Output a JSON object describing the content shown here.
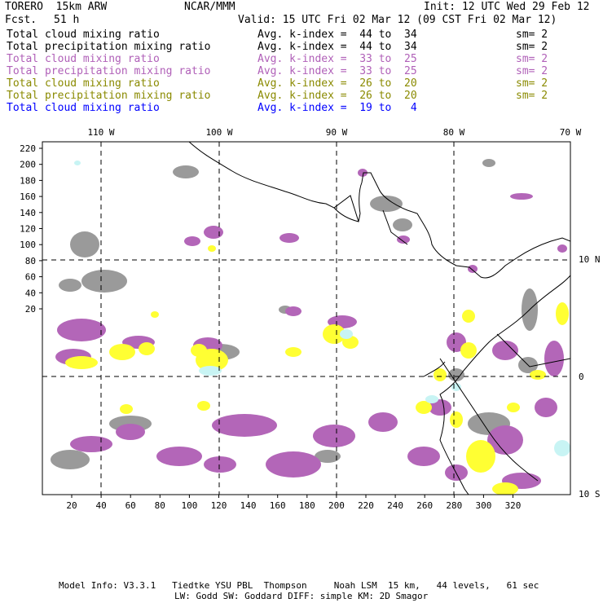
{
  "header": {
    "model": "TORERO  15km ARW",
    "center": "NCAR/MMM",
    "init": "Init: 12 UTC Wed 29 Feb 12",
    "fcst_label": "Fcst.",
    "fcst_hours": "51 h",
    "valid": "Valid: 15 UTC Fri 02 Mar 12 (09 CST Fri 02 Mar 12)"
  },
  "legend": [
    {
      "field": "Total cloud mixing ratio",
      "index": "Avg. k-index =  44 to  34",
      "sm": "sm= 2",
      "color": "#000000"
    },
    {
      "field": "Total precipitation mixing ratio",
      "index": "Avg. k-index =  44 to  34",
      "sm": "sm= 2",
      "color": "#000000"
    },
    {
      "field": "Total cloud mixing ratio",
      "index": "Avg. k-index =  33 to  25",
      "sm": "sm= 2",
      "color": "#b060b8"
    },
    {
      "field": "Total precipitation mixing ratio",
      "index": "Avg. k-index =  33 to  25",
      "sm": "sm= 2",
      "color": "#b060b8"
    },
    {
      "field": "Total cloud mixing ratio",
      "index": "Avg. k-index =  26 to  20",
      "sm": "sm= 2",
      "color": "#8a8a00"
    },
    {
      "field": "Total precipitation mixing ratio",
      "index": "Avg. k-index =  26 to  20",
      "sm": "sm= 2",
      "color": "#8a8a00"
    },
    {
      "field": "Total cloud mixing ratio",
      "index": "Avg. k-index =  19 to   4",
      "sm": "",
      "color": "#0000ff"
    }
  ],
  "map": {
    "lon_labels": [
      "110 W",
      "100 W",
      "90 W",
      "80 W",
      "70 W"
    ],
    "lat_labels": [
      "10 N",
      "0",
      "10 S"
    ],
    "y_ticks": [
      "220",
      "200",
      "180",
      "160",
      "140",
      "120",
      "100",
      "80",
      "60",
      "40",
      "20"
    ],
    "x_ticks": [
      "20",
      "40",
      "60",
      "80",
      "100",
      "120",
      "140",
      "160",
      "180",
      "200",
      "220",
      "240",
      "260",
      "280",
      "300",
      "320"
    ],
    "colors": {
      "gray": "#9a9a9a",
      "purple": "#b366b8",
      "yellow": "#ffff33",
      "cyan": "#c8f4f4"
    }
  },
  "footer": {
    "line1": "Model Info: V3.3.1   Tiedtke YSU PBL  Thompson     Noah LSM  15 km,   44 levels,   61 sec",
    "line2": "LW: Godd SW: Goddard DIFF: simple KM: 2D Smagor"
  }
}
